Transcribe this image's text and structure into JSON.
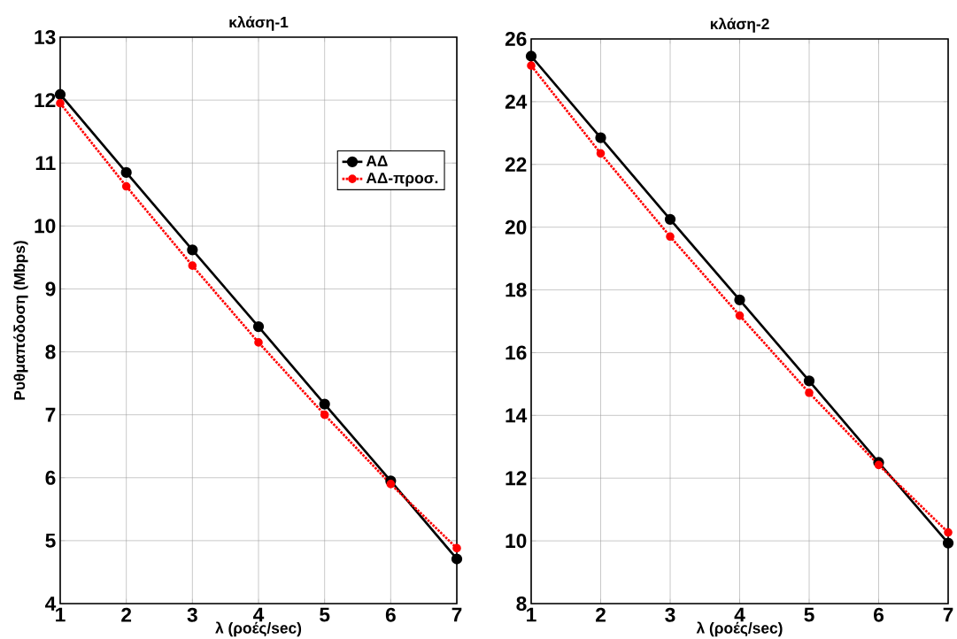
{
  "chart_data": [
    {
      "type": "line",
      "title": "κλάση-1",
      "xlabel": "λ (ροές/sec)",
      "ylabel": "Ρυθμαπόδοση (Mbps)",
      "x": [
        1,
        2,
        3,
        4,
        5,
        6,
        7
      ],
      "xlim": [
        1,
        7
      ],
      "xticks": [
        1,
        2,
        3,
        4,
        5,
        6,
        7
      ],
      "ylim": [
        4,
        13
      ],
      "yticks": [
        4,
        5,
        6,
        7,
        8,
        9,
        10,
        11,
        12,
        13
      ],
      "grid": true,
      "legend": "top right",
      "marker": "circle",
      "series": [
        {
          "name": "ΑΔ",
          "color": "#000000",
          "line_style": "solid",
          "values": [
            12.09,
            10.85,
            9.62,
            8.4,
            7.17,
            5.95,
            4.71
          ]
        },
        {
          "name": "ΑΔ-προσ.",
          "color": "#ff0000",
          "line_style": "dotted",
          "values": [
            11.95,
            10.63,
            9.37,
            8.15,
            7.0,
            5.9,
            4.88
          ]
        }
      ]
    },
    {
      "type": "line",
      "title": "κλάση-2",
      "xlabel": "λ (ροές/sec)",
      "x": [
        1,
        2,
        3,
        4,
        5,
        6,
        7
      ],
      "xlim": [
        1,
        7
      ],
      "xticks": [
        1,
        2,
        3,
        4,
        5,
        6,
        7
      ],
      "ylim": [
        8,
        26
      ],
      "yticks": [
        8,
        10,
        12,
        14,
        16,
        18,
        20,
        22,
        24,
        26
      ],
      "grid": true,
      "marker": "circle",
      "series": [
        {
          "color": "#000000",
          "line_style": "solid",
          "values": [
            25.45,
            22.85,
            20.25,
            17.68,
            15.1,
            12.5,
            9.93
          ]
        },
        {
          "color": "#ff0000",
          "line_style": "dotted",
          "values": [
            25.15,
            22.35,
            19.7,
            17.18,
            14.72,
            12.42,
            10.27
          ]
        }
      ]
    }
  ]
}
